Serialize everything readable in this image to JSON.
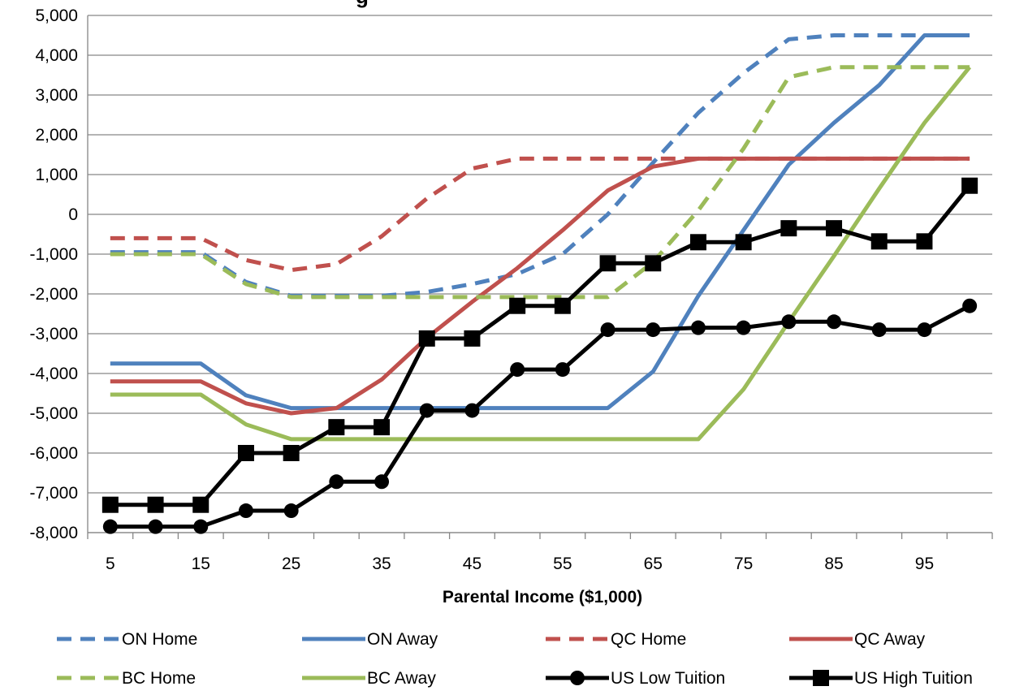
{
  "chart_data": {
    "type": "line",
    "title": "",
    "title_fragment": "g",
    "xlabel": "Parental Income ($1,000)",
    "ylabel": "",
    "x": [
      5,
      10,
      15,
      20,
      25,
      30,
      35,
      40,
      45,
      50,
      55,
      60,
      65,
      70,
      75,
      80,
      85,
      90,
      95,
      100
    ],
    "xticks": [
      5,
      15,
      25,
      35,
      45,
      55,
      65,
      75,
      85,
      95
    ],
    "ylim": [
      -8000,
      5000
    ],
    "yticks": [
      -8000,
      -7000,
      -6000,
      -5000,
      -4000,
      -3000,
      -2000,
      -1000,
      0,
      1000,
      2000,
      3000,
      4000,
      5000
    ],
    "ytick_labels": [
      "-8,000",
      "-7,000",
      "-6,000",
      "-5,000",
      "-4,000",
      "-3,000",
      "-2,000",
      "-1,000",
      "0",
      "1,000",
      "2,000",
      "3,000",
      "4,000",
      "5,000"
    ],
    "grid": "horizontal",
    "legend_position": "bottom",
    "series": [
      {
        "name": "ON Home",
        "color": "#4f81bd",
        "style": "dashed",
        "marker": "none",
        "values": [
          -950,
          -950,
          -950,
          -1700,
          -2050,
          -2050,
          -2050,
          -1950,
          -1750,
          -1500,
          -1000,
          0,
          1300,
          2550,
          3550,
          4400,
          4500,
          4500,
          4500,
          4500
        ]
      },
      {
        "name": "ON Away",
        "color": "#4f81bd",
        "style": "solid",
        "marker": "none",
        "values": [
          -3750,
          -3750,
          -3750,
          -4550,
          -4870,
          -4870,
          -4870,
          -4870,
          -4870,
          -4870,
          -4870,
          -4870,
          -3950,
          -2050,
          -400,
          1250,
          2300,
          3250,
          4500,
          4500
        ]
      },
      {
        "name": "QC Home",
        "color": "#c0504d",
        "style": "dashed",
        "marker": "none",
        "values": [
          -600,
          -600,
          -600,
          -1150,
          -1400,
          -1250,
          -550,
          400,
          1150,
          1400,
          1400,
          1400,
          1400,
          1400,
          1400,
          1400,
          1400,
          1400,
          1400,
          1400
        ]
      },
      {
        "name": "QC Away",
        "color": "#c0504d",
        "style": "solid",
        "marker": "none",
        "values": [
          -4200,
          -4200,
          -4200,
          -4750,
          -5000,
          -4870,
          -4150,
          -3100,
          -2200,
          -1350,
          -400,
          600,
          1200,
          1400,
          1400,
          1400,
          1400,
          1400,
          1400,
          1400
        ]
      },
      {
        "name": "BC Home",
        "color": "#9bbb59",
        "style": "dashed",
        "marker": "none",
        "values": [
          -1000,
          -1000,
          -1000,
          -1750,
          -2080,
          -2080,
          -2080,
          -2080,
          -2080,
          -2080,
          -2080,
          -2080,
          -1200,
          100,
          1650,
          3450,
          3700,
          3700,
          3700,
          3700
        ]
      },
      {
        "name": "BC Away",
        "color": "#9bbb59",
        "style": "solid",
        "marker": "none",
        "values": [
          -4530,
          -4530,
          -4530,
          -5280,
          -5650,
          -5650,
          -5650,
          -5650,
          -5650,
          -5650,
          -5650,
          -5650,
          -5650,
          -5650,
          -4400,
          -2700,
          -1050,
          650,
          2300,
          3700
        ]
      },
      {
        "name": "US Low Tuition",
        "color": "#000000",
        "style": "solid",
        "marker": "circle",
        "values": [
          -7850,
          -7850,
          -7850,
          -7450,
          -7450,
          -6720,
          -6720,
          -4930,
          -4930,
          -3900,
          -3900,
          -2900,
          -2900,
          -2850,
          -2850,
          -2700,
          -2700,
          -2900,
          -2900,
          -2300
        ]
      },
      {
        "name": "US High Tuition",
        "color": "#000000",
        "style": "solid",
        "marker": "square",
        "values": [
          -7300,
          -7300,
          -7300,
          -6000,
          -6000,
          -5350,
          -5350,
          -3120,
          -3120,
          -2300,
          -2300,
          -1230,
          -1230,
          -700,
          -700,
          -350,
          -350,
          -680,
          -680,
          720
        ]
      }
    ]
  }
}
